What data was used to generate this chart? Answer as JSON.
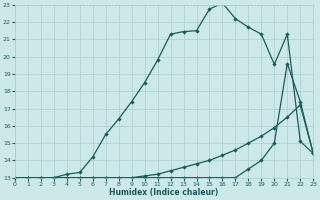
{
  "xlabel": "Humidex (Indice chaleur)",
  "xlim": [
    0,
    23
  ],
  "ylim": [
    13,
    23
  ],
  "xticks": [
    0,
    1,
    2,
    3,
    4,
    5,
    6,
    7,
    8,
    9,
    10,
    11,
    12,
    13,
    14,
    15,
    16,
    17,
    18,
    19,
    20,
    21,
    22,
    23
  ],
  "yticks": [
    13,
    14,
    15,
    16,
    17,
    18,
    19,
    20,
    21,
    22,
    23
  ],
  "bg_color": "#cce8e8",
  "grid_color": "#aacece",
  "line_color": "#1a5c5c",
  "line1_x": [
    0,
    1,
    2,
    3,
    4,
    5,
    6,
    7,
    8,
    9,
    10,
    11,
    12,
    13,
    14,
    15,
    16,
    17,
    18,
    19,
    20,
    21,
    22,
    23
  ],
  "line1_y": [
    13,
    13,
    13,
    13,
    13,
    13,
    13,
    13,
    13,
    13,
    13.1,
    13.2,
    13.4,
    13.6,
    13.8,
    14.0,
    14.3,
    14.6,
    15.0,
    15.4,
    15.9,
    16.5,
    17.2,
    14.4
  ],
  "line2_x": [
    0,
    1,
    2,
    3,
    4,
    5,
    6,
    7,
    8,
    9,
    10,
    11,
    12,
    13,
    14,
    15,
    16,
    17,
    18,
    19,
    20,
    21,
    22,
    23
  ],
  "line2_y": [
    13,
    13,
    13,
    13,
    13,
    13,
    13,
    13,
    13,
    13,
    13,
    13,
    13,
    13,
    13,
    13,
    13,
    13,
    13.5,
    14.0,
    15.0,
    19.6,
    17.4,
    14.4
  ],
  "line3_x": [
    0,
    1,
    2,
    3,
    4,
    5,
    6,
    7,
    8,
    9,
    10,
    11,
    12,
    13,
    14,
    15,
    16,
    17,
    18,
    19,
    20,
    21,
    22,
    23
  ],
  "line3_y": [
    13,
    13,
    13,
    13,
    13.2,
    13.3,
    14.2,
    15.5,
    16.4,
    17.4,
    18.5,
    19.8,
    21.3,
    21.45,
    21.5,
    22.75,
    23.1,
    22.2,
    21.7,
    21.3,
    19.55,
    21.3,
    15.1,
    14.4
  ]
}
